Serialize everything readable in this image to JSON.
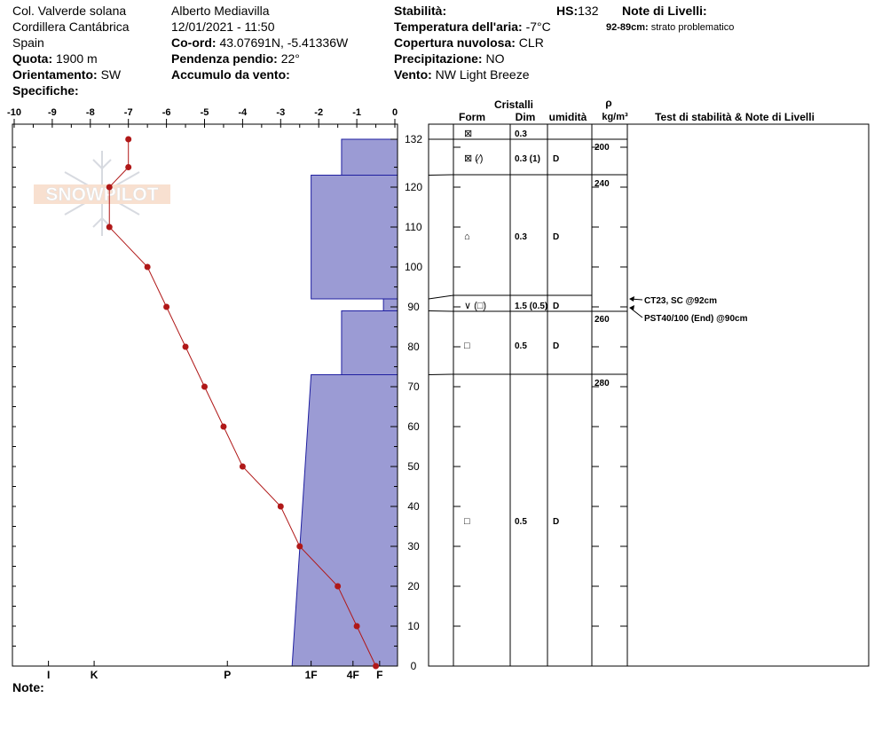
{
  "header": {
    "location": "Col. Valverde solana",
    "range": "Cordillera Cantábrica",
    "country": "Spain",
    "quota_label": "Quota:",
    "quota_value": "1900 m",
    "orient_label": "Orientamento:",
    "orient_value": "SW",
    "specifiche_label": "Specifiche:",
    "observer": "Alberto Mediavilla",
    "datetime": "12/01/2021 - 11:50",
    "coord_label": "Co-ord:",
    "coord_value": "43.07691N, -5.41336W",
    "slope_label": "Pendenza pendio:",
    "slope_value": "22°",
    "wind_loading_label": "Accumulo da vento:",
    "stability_label": "Stabilità:",
    "air_temp_label": "Temperatura dell'aria:",
    "air_temp_value": "-7°C",
    "sky_label": "Copertura nuvolosa:",
    "sky_value": "CLR",
    "precip_label": "Precipitazione:",
    "precip_value": "NO",
    "wind_label": "Vento:",
    "wind_value": "NW Light Breeze",
    "hs_label": "HS:",
    "hs_value": "132",
    "layer_notes_label": "Note di Livelli:",
    "layer_note_range": "92-89cm:",
    "layer_note_text": "strato problematico"
  },
  "watermark": "SNOWPILOT",
  "note_label": "Note:",
  "columns": {
    "cristalli": "Cristalli",
    "form": "Form",
    "dim": "Dim",
    "umidita": "umidità",
    "rho": "ρ",
    "density_unit": "kg/m³",
    "tests": "Test di stabilità & Note di Livelli"
  },
  "chart_data": {
    "type": "snow-profile",
    "temp_axis": {
      "ticks": [
        "-10",
        "-9",
        "-8",
        "-7",
        "-6",
        "-5",
        "-4",
        "-3",
        "-2",
        "-1",
        "0"
      ],
      "range": [
        -10,
        0
      ]
    },
    "height_axis": {
      "ticks": [
        "0",
        "10",
        "20",
        "30",
        "40",
        "50",
        "60",
        "70",
        "80",
        "90",
        "100",
        "110",
        "120",
        "132"
      ],
      "range": [
        0,
        132
      ]
    },
    "hardness_axis": {
      "labels": [
        "I",
        "K",
        "P",
        "1F",
        "4F",
        "F"
      ]
    },
    "temperature_profile": [
      {
        "h": 132,
        "t": -7.0
      },
      {
        "h": 125,
        "t": -7.0
      },
      {
        "h": 120,
        "t": -7.5
      },
      {
        "h": 110,
        "t": -7.5
      },
      {
        "h": 100,
        "t": -6.5
      },
      {
        "h": 90,
        "t": -6.0
      },
      {
        "h": 80,
        "t": -5.5
      },
      {
        "h": 70,
        "t": -5.0
      },
      {
        "h": 60,
        "t": -4.5
      },
      {
        "h": 50,
        "t": -4.0
      },
      {
        "h": 40,
        "t": -3.0
      },
      {
        "h": 30,
        "t": -2.5
      },
      {
        "h": 20,
        "t": -1.5
      },
      {
        "h": 10,
        "t": -1.0
      },
      {
        "h": 0,
        "t": -0.5
      }
    ],
    "hardness_layers": [
      {
        "top": 132,
        "bottom": 123,
        "hardness": -1.4
      },
      {
        "top": 123,
        "bottom": 92,
        "hardness": -2.2
      },
      {
        "top": 92,
        "bottom": 89,
        "hardness": -0.3
      },
      {
        "top": 89,
        "bottom": 73,
        "hardness": -1.4
      },
      {
        "top": 73,
        "bottom": 0,
        "hardness_top": -2.2,
        "hardness_bottom": -2.7
      }
    ],
    "layer_boundaries": [
      132,
      123,
      92,
      89,
      73,
      0
    ],
    "layers": [
      {
        "top": 132,
        "bottom": 129,
        "form": "⊠",
        "dim": "0.3",
        "moisture": ""
      },
      {
        "top": 129,
        "bottom": 123,
        "form": "⊠ (⁄)",
        "dim": "0.3 (1)",
        "moisture": "D"
      },
      {
        "top": 123,
        "bottom": 92,
        "form": "⌂",
        "dim": "0.3",
        "moisture": "D"
      },
      {
        "top": 92,
        "bottom": 89,
        "form": "∨ (□)",
        "dim": "1.5 (0.5)",
        "moisture": "D"
      },
      {
        "top": 89,
        "bottom": 73,
        "form": "□",
        "dim": "0.5",
        "moisture": "D"
      },
      {
        "top": 73,
        "bottom": 0,
        "form": "□",
        "dim": "0.5",
        "moisture": "D"
      }
    ],
    "densities": [
      {
        "h": 129,
        "value": "200"
      },
      {
        "h": 123,
        "value": "240"
      },
      {
        "h": 88,
        "value": "260"
      },
      {
        "h": 72,
        "value": "280"
      }
    ],
    "stability_tests": [
      {
        "h": 92,
        "label": "CT23, SC @92cm"
      },
      {
        "h": 90,
        "label": "PST40/100 (End) @90cm"
      }
    ],
    "colors": {
      "hardness_fill": "#9b9bd4",
      "hardness_edge": "#1f1fa0",
      "temp_line": "#b01818"
    }
  }
}
